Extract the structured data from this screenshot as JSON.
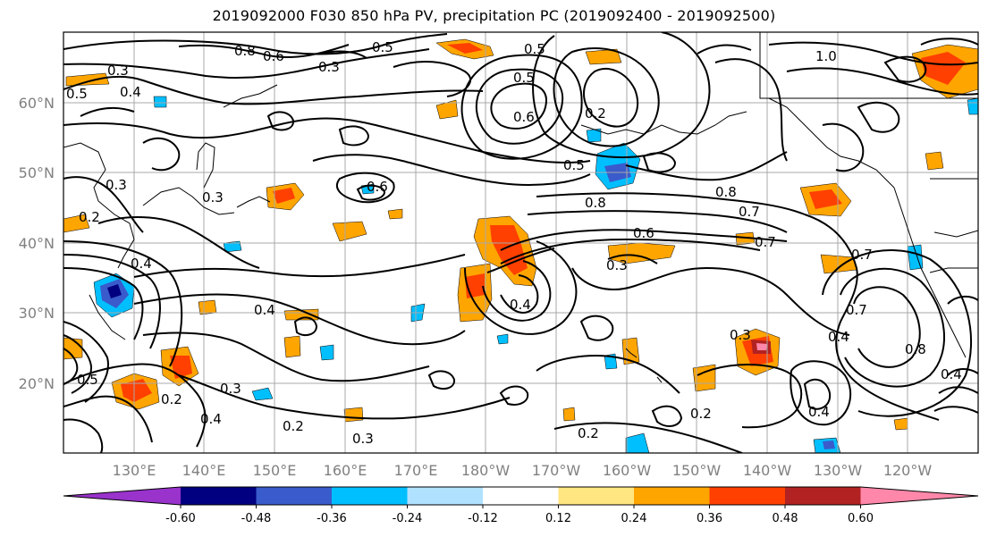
{
  "title": "2019092000 F030 850 hPa PV, precipitation PC (2019092400 - 2019092500)",
  "map": {
    "lat_labels": [
      "60°N",
      "50°N",
      "40°N",
      "30°N",
      "20°N"
    ],
    "lon_labels": [
      "130°E",
      "140°E",
      "150°E",
      "160°E",
      "170°E",
      "180°W",
      "170°W",
      "160°W",
      "150°W",
      "140°W",
      "130°W",
      "120°W"
    ],
    "contour_labels": [
      "0.8",
      "0.6",
      "0.5",
      "0.3",
      "0.5",
      "0.5",
      "1.0",
      "0.3",
      "0.4",
      "0.5",
      "0.6",
      "0.2",
      "0.5",
      "0.8",
      "0.6",
      "0.3",
      "0.2",
      "0.4",
      "0.8",
      "0.7",
      "0.6",
      "0.7",
      "0.7",
      "0.3",
      "0.4",
      "0.4",
      "0.7",
      "0.8",
      "0.4",
      "0.5",
      "0.2",
      "0.4",
      "0.3",
      "0.2",
      "0.3",
      "0.2",
      "0.2",
      "0.3",
      "0.4",
      "0.4",
      "0.3"
    ]
  },
  "colorbar": {
    "ticks": [
      "-0.60",
      "-0.48",
      "-0.36",
      "-0.24",
      "-0.12",
      "0.12",
      "0.24",
      "0.36",
      "0.48",
      "0.60"
    ],
    "colors": [
      "#9933cc",
      "#000080",
      "#3a5bcb",
      "#00bfff",
      "#b0e2ff",
      "#ffffff",
      "#ffe680",
      "#ffa500",
      "#ff4000",
      "#b22222",
      "#ff88aa"
    ]
  }
}
